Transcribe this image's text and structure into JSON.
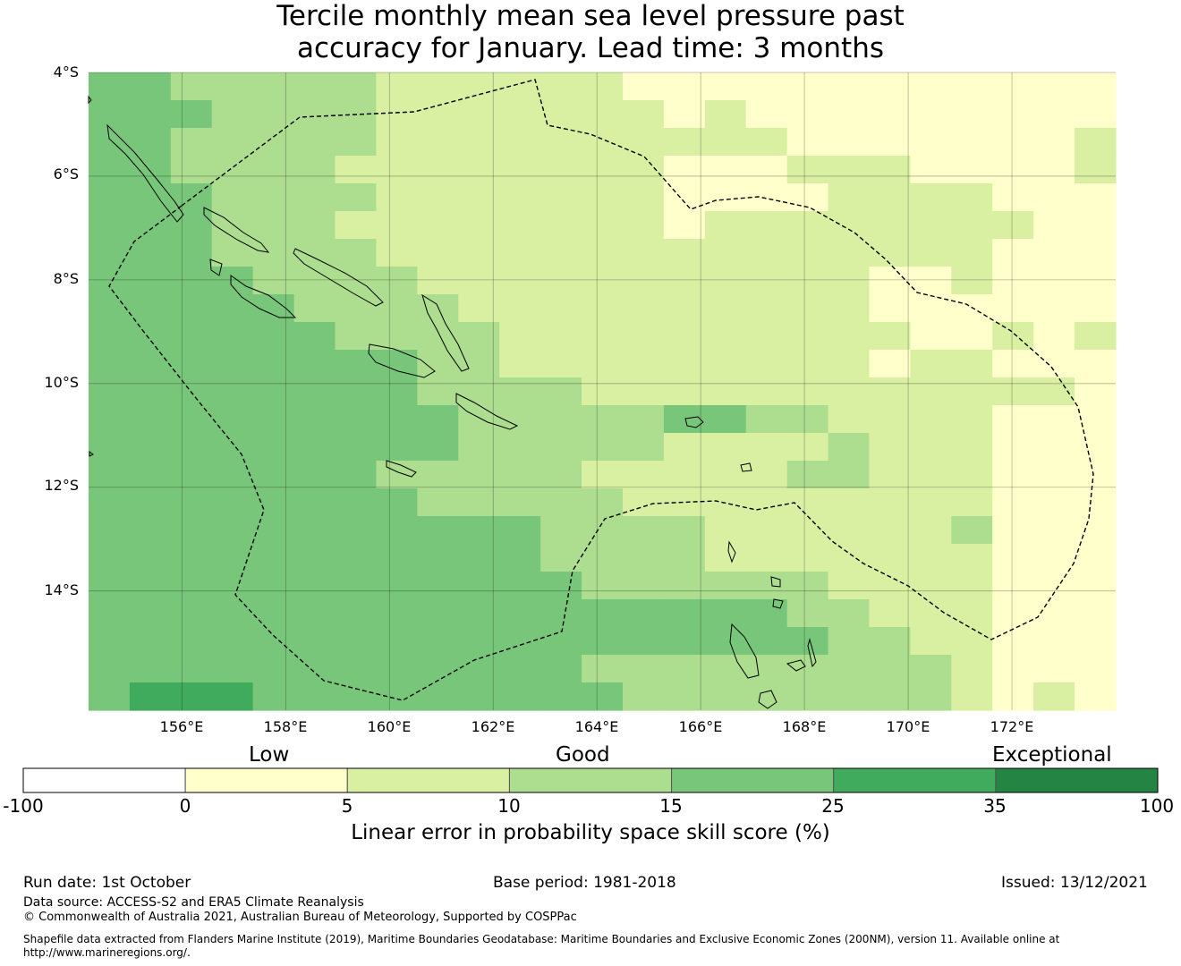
{
  "title_lines": [
    "Tercile monthly mean sea level pressure past",
    "accuracy for January. Lead time: 3 months"
  ],
  "map": {
    "lat_labels": [
      "4°S",
      "6°S",
      "8°S",
      "10°S",
      "12°S",
      "14°S"
    ],
    "lon_labels": [
      "156°E",
      "158°E",
      "160°E",
      "162°E",
      "164°E",
      "166°E",
      "168°E",
      "170°E",
      "172°E"
    ],
    "lon_range": [
      154.2,
      174.0
    ],
    "lat_range": [
      -16.3,
      -4.0
    ],
    "grid_cell_deg": 0.833,
    "grid": [
      "4433333222222111111111111",
      "4443333222222212111111111",
      "4433333222222222211111112",
      "4433332222222211122211112",
      "4443333222222211112222111",
      "4443332222222212222222211",
      "4443333222222222222222111",
      "4444333322222222222112111",
      "4444433332222222222111111",
      "4444443333222222222211212",
      "4444444433222222222122111",
      "4444444433332222222222221",
      "4444444443333344332222111",
      "4444444443333322223222111",
      "4444444333332222233222111",
      "4444444433333222222222111",
      "4444444444433332222223111",
      "4444444444433332222222111",
      "4444444444443333332222111",
      "4444444444444444433222111",
      "4444444444444444443322111",
      "4444444444443333333332111",
      "4555444444444333333332121"
    ],
    "colors": {
      "0": "#ffffff",
      "1": "#ffffcc",
      "2": "#d9f0a3",
      "3": "#addd8e",
      "4": "#78c679",
      "5": "#41ab5d",
      "6": "#238443"
    }
  },
  "categories": [
    {
      "name": "Low"
    },
    {
      "name": "Good"
    },
    {
      "name": "Exceptional"
    }
  ],
  "colorbar": {
    "ticks": [
      "-100",
      "0",
      "5",
      "10",
      "15",
      "25",
      "35",
      "100"
    ],
    "colors": [
      "#ffffff",
      "#ffffcc",
      "#d9f0a3",
      "#addd8e",
      "#78c679",
      "#41ab5d",
      "#238443"
    ],
    "label": "Linear error in probability space skill score (%)"
  },
  "footer": {
    "run_date": "Run date: 1st October",
    "base_period": "Base period: 1981-2018",
    "issued": "Issued: 13/12/2021",
    "data_source": "Data source: ACCESS-S2 and ERA5 Climate Reanalysis",
    "copyright": "© Commonwealth of Australia 2021, Australian Bureau of Meteorology, Supported by COSPPac",
    "shapefile": "Shapefile data extracted from Flanders Marine Institute (2019), Maritime Boundaries Geodatabase: Maritime Boundaries and Exclusive Economic Zones (200NM), version 11. Available online at http://www.marineregions.org/."
  }
}
